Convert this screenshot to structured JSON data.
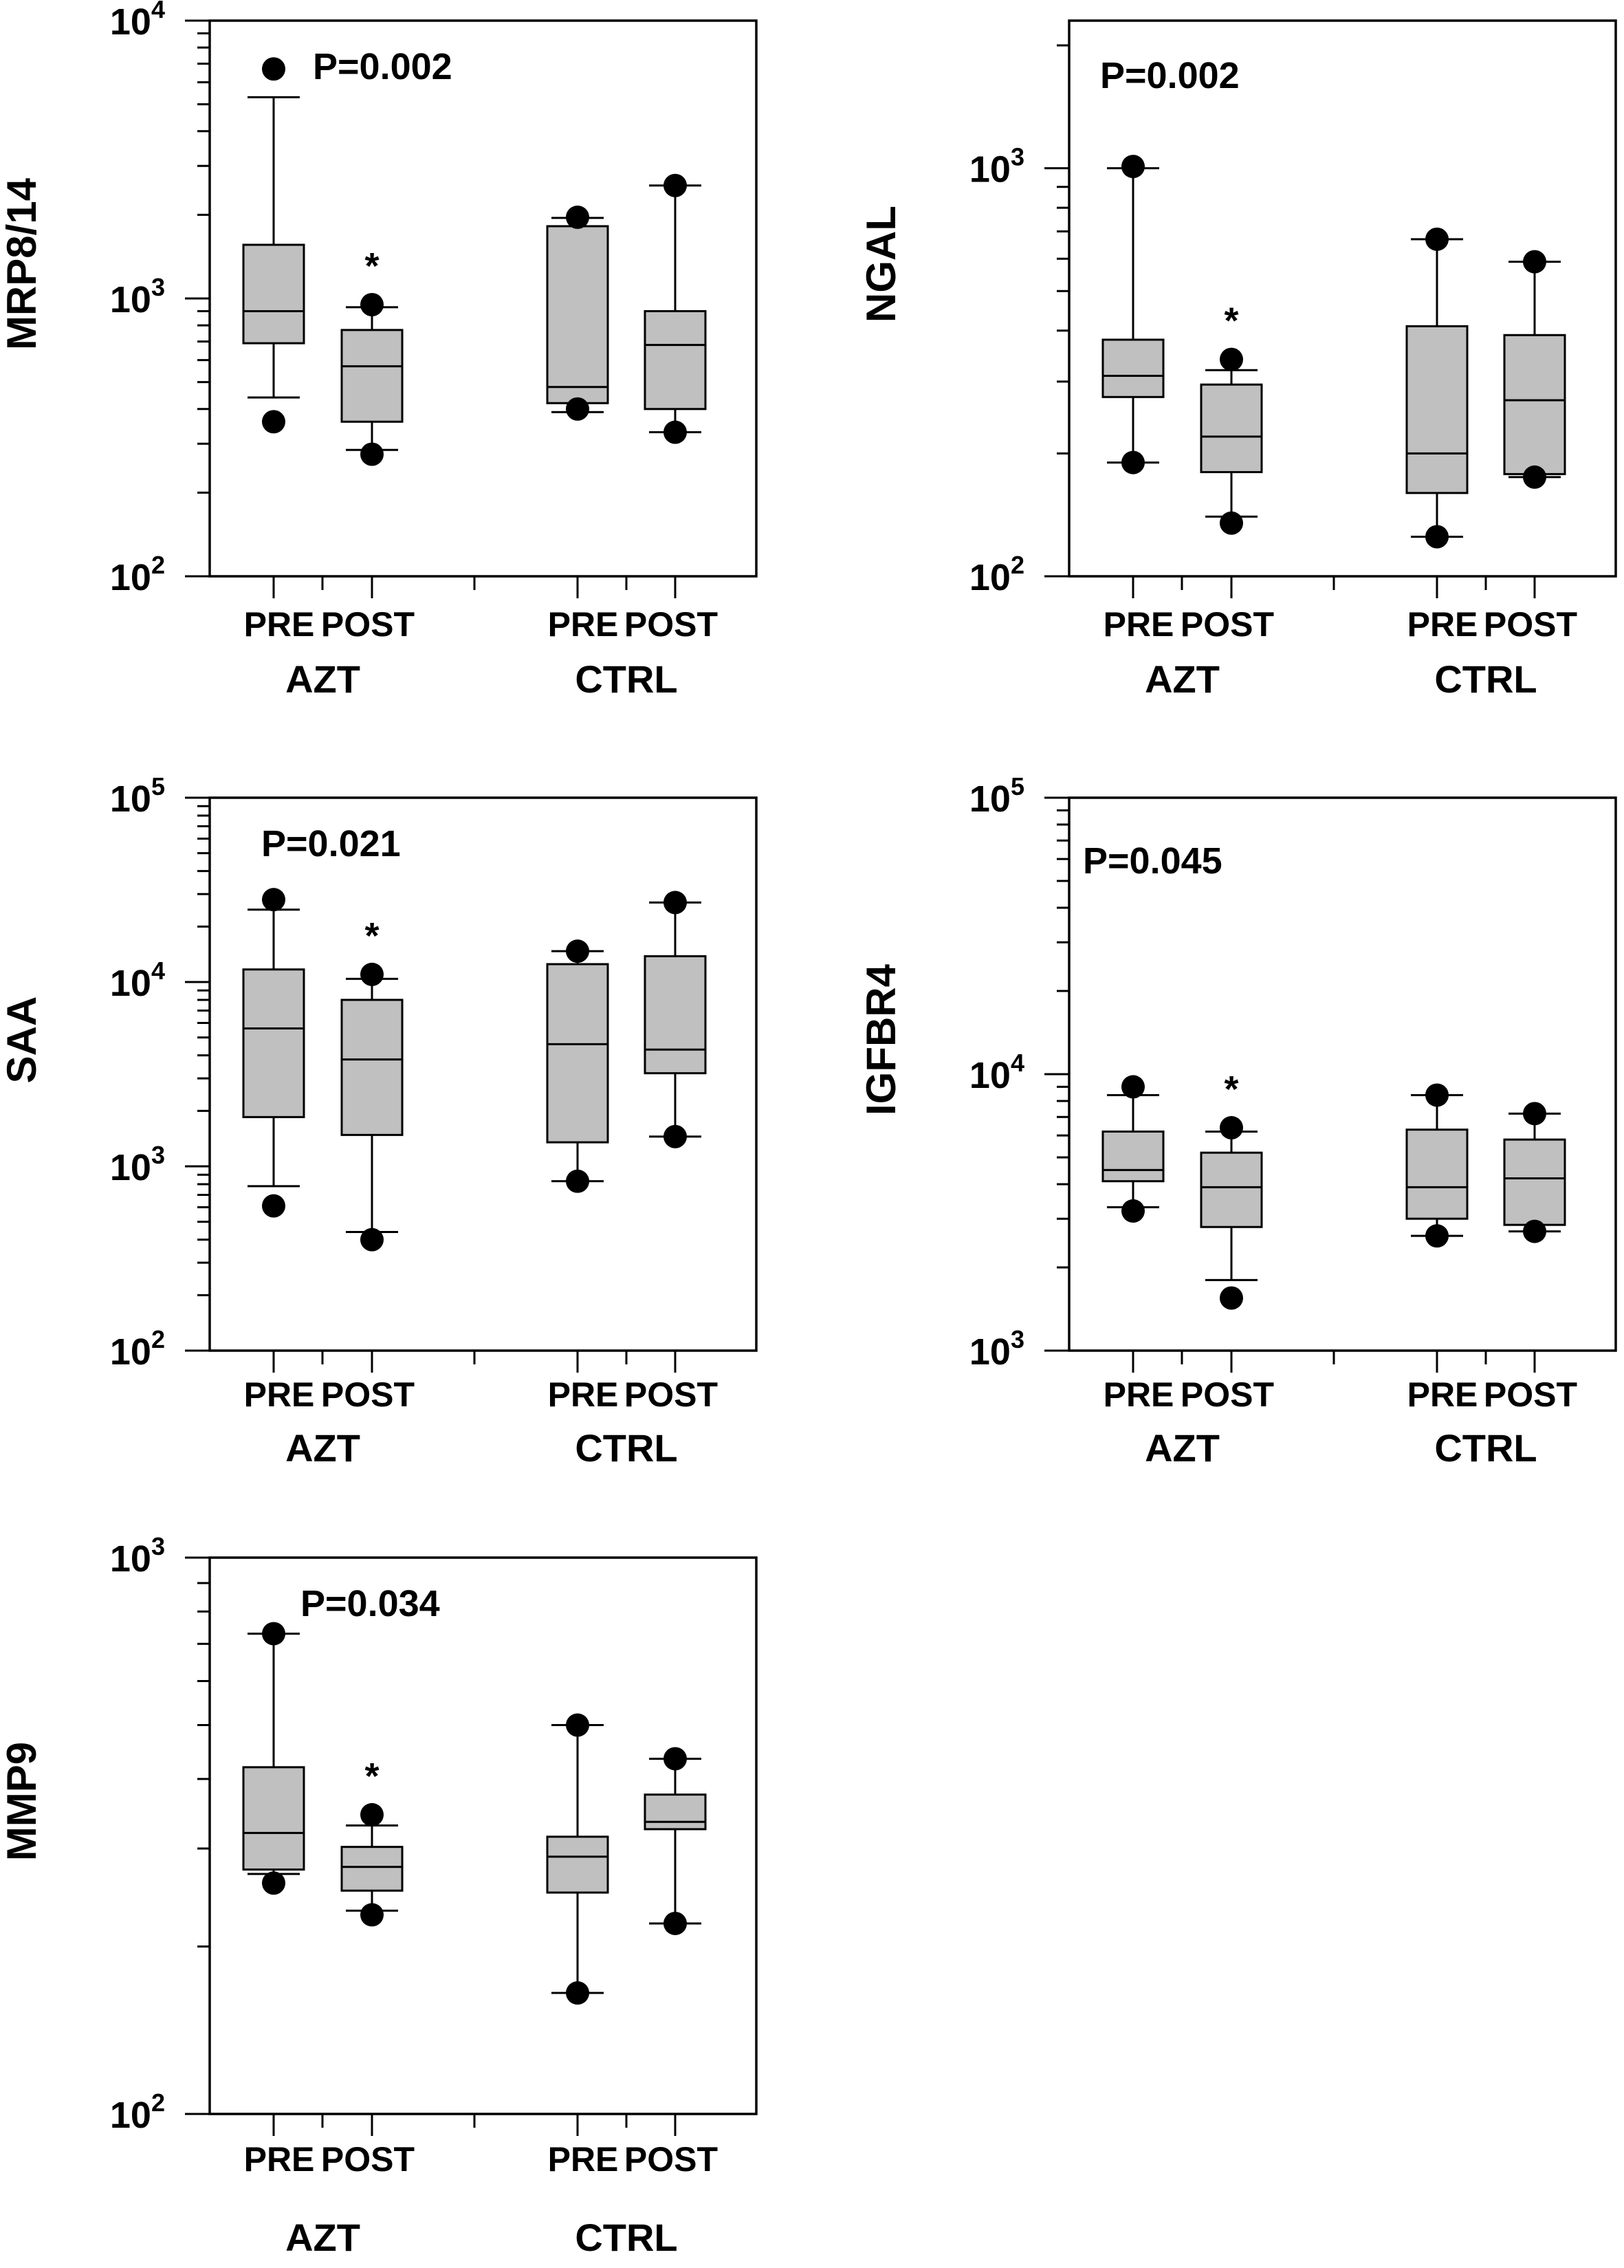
{
  "chart_data": [
    {
      "type": "box",
      "ylabel": "MRP8/14",
      "yscale": "log",
      "ylim": [
        100,
        10000
      ],
      "decades": [
        2,
        3,
        4
      ],
      "tick_base": "10",
      "pvalue": "P=0.002",
      "categories": [
        "PRE",
        "POST",
        "PRE",
        "POST"
      ],
      "groups": [
        "AZT",
        "CTRL"
      ],
      "boxes": [
        {
          "min": 440,
          "q1": 690,
          "median": 900,
          "q3": 1560,
          "max": 5300,
          "outliers": [
            360,
            6700
          ]
        },
        {
          "min": 285,
          "q1": 360,
          "median": 570,
          "q3": 770,
          "max": 930,
          "outliers": [
            275,
            950
          ],
          "star": "*"
        },
        {
          "min": 390,
          "q1": 420,
          "median": 480,
          "q3": 1820,
          "max": 1950,
          "outliers": [
            400,
            1960
          ]
        },
        {
          "min": 330,
          "q1": 400,
          "median": 680,
          "q3": 900,
          "max": 2550,
          "outliers": [
            330,
            2550
          ]
        }
      ]
    },
    {
      "type": "box",
      "ylabel": "NGAL",
      "yscale": "log",
      "ylim": [
        100,
        2300
      ],
      "decades": [
        2,
        3
      ],
      "tick_base": "10",
      "pvalue": "P=0.002",
      "categories": [
        "PRE",
        "POST",
        "PRE",
        "POST"
      ],
      "groups": [
        "AZT",
        "CTRL"
      ],
      "boxes": [
        {
          "min": 190,
          "q1": 275,
          "median": 310,
          "q3": 380,
          "max": 1000,
          "outliers": [
            190,
            1010
          ]
        },
        {
          "min": 140,
          "q1": 180,
          "median": 220,
          "q3": 295,
          "max": 320,
          "outliers": [
            135,
            340
          ],
          "star": "*"
        },
        {
          "min": 125,
          "q1": 160,
          "median": 200,
          "q3": 410,
          "max": 670,
          "outliers": [
            125,
            670
          ]
        },
        {
          "min": 175,
          "q1": 178,
          "median": 270,
          "q3": 390,
          "max": 590,
          "outliers": [
            175,
            590
          ]
        }
      ]
    },
    {
      "type": "box",
      "ylabel": "SAA",
      "yscale": "log",
      "ylim": [
        100,
        100000
      ],
      "decades": [
        2,
        3,
        4,
        5
      ],
      "tick_base": "10",
      "pvalue": "P=0.021",
      "categories": [
        "PRE",
        "POST",
        "PRE",
        "POST"
      ],
      "groups": [
        "AZT",
        "CTRL"
      ],
      "boxes": [
        {
          "min": 780,
          "q1": 1850,
          "median": 5600,
          "q3": 11700,
          "max": 24700,
          "outliers": [
            610,
            28000
          ]
        },
        {
          "min": 440,
          "q1": 1480,
          "median": 3800,
          "q3": 8000,
          "max": 10400,
          "outliers": [
            400,
            11000
          ],
          "star": "*"
        },
        {
          "min": 830,
          "q1": 1350,
          "median": 4600,
          "q3": 12500,
          "max": 14700,
          "outliers": [
            830,
            14700
          ]
        },
        {
          "min": 1450,
          "q1": 3200,
          "median": 4300,
          "q3": 13800,
          "max": 27000,
          "outliers": [
            1450,
            27000
          ]
        }
      ]
    },
    {
      "type": "box",
      "ylabel": "IGFBR4",
      "yscale": "log",
      "ylim": [
        1000,
        100000
      ],
      "decades": [
        3,
        4,
        5
      ],
      "tick_base": "10",
      "pvalue": "P=0.045",
      "categories": [
        "PRE",
        "POST",
        "PRE",
        "POST"
      ],
      "groups": [
        "AZT",
        "CTRL"
      ],
      "boxes": [
        {
          "min": 3300,
          "q1": 4100,
          "median": 4500,
          "q3": 6200,
          "max": 8400,
          "outliers": [
            3200,
            9000
          ]
        },
        {
          "min": 1800,
          "q1": 2800,
          "median": 3900,
          "q3": 5200,
          "max": 6200,
          "outliers": [
            1550,
            6400
          ],
          "star": "*"
        },
        {
          "min": 2600,
          "q1": 3000,
          "median": 3900,
          "q3": 6300,
          "max": 8400,
          "outliers": [
            2600,
            8400
          ]
        },
        {
          "min": 2700,
          "q1": 2850,
          "median": 4200,
          "q3": 5800,
          "max": 7200,
          "outliers": [
            2700,
            7200
          ]
        }
      ]
    },
    {
      "type": "box",
      "ylabel": "MMP9",
      "yscale": "log",
      "ylim": [
        100,
        1000
      ],
      "decades": [
        2,
        3
      ],
      "tick_base": "10",
      "pvalue": "P=0.034",
      "categories": [
        "PRE",
        "POST",
        "PRE",
        "POST"
      ],
      "groups": [
        "AZT",
        "CTRL"
      ],
      "boxes": [
        {
          "min": 270,
          "q1": 275,
          "median": 320,
          "q3": 420,
          "max": 730,
          "outliers": [
            260,
            730
          ]
        },
        {
          "min": 232,
          "q1": 252,
          "median": 278,
          "q3": 302,
          "max": 330,
          "outliers": [
            228,
            345
          ],
          "star": "*"
        },
        {
          "min": 165,
          "q1": 250,
          "median": 290,
          "q3": 315,
          "max": 500,
          "outliers": [
            165,
            500
          ]
        },
        {
          "min": 220,
          "q1": 325,
          "median": 335,
          "q3": 375,
          "max": 435,
          "outliers": [
            220,
            435
          ]
        }
      ]
    }
  ]
}
